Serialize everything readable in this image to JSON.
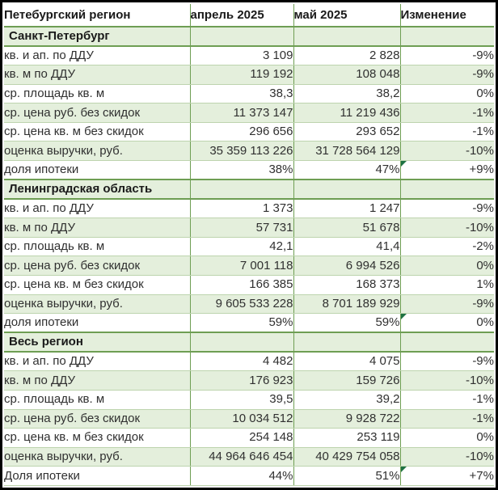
{
  "chart_data": {
    "type": "table",
    "title": "Петебургский регион",
    "columns": [
      "Петебургский регион",
      "апрель 2025",
      "май 2025",
      "Изменение"
    ],
    "sections": [
      {
        "title": "Санкт-Петербург",
        "rows": [
          {
            "label": "кв. и ап. по ДДУ",
            "april": "3 109",
            "may": "2 828",
            "change": "-9%",
            "flag": false
          },
          {
            "label": "кв. м по ДДУ",
            "april": "119 192",
            "may": "108 048",
            "change": "-9%",
            "flag": false
          },
          {
            "label": "ср. площадь кв. м",
            "april": "38,3",
            "may": "38,2",
            "change": "0%",
            "flag": false
          },
          {
            "label": "ср. цена руб. без скидок",
            "april": "11 373 147",
            "may": "11 219 436",
            "change": "-1%",
            "flag": false
          },
          {
            "label": "ср. цена кв. м без скидок",
            "april": "296 656",
            "may": "293 652",
            "change": "-1%",
            "flag": false
          },
          {
            "label": "оценка выручки, руб.",
            "april": "35 359 113 226",
            "may": "31 728 564 129",
            "change": "-10%",
            "flag": false
          },
          {
            "label": "доля ипотеки",
            "april": "38%",
            "may": "47%",
            "change": "+9%",
            "flag": true
          }
        ]
      },
      {
        "title": "Ленинградская область",
        "rows": [
          {
            "label": "кв. и ап. по ДДУ",
            "april": "1 373",
            "may": "1 247",
            "change": "-9%",
            "flag": false
          },
          {
            "label": "кв. м по ДДУ",
            "april": "57 731",
            "may": "51 678",
            "change": "-10%",
            "flag": false
          },
          {
            "label": "ср. площадь кв. м",
            "april": "42,1",
            "may": "41,4",
            "change": "-2%",
            "flag": false
          },
          {
            "label": "ср. цена руб. без скидок",
            "april": "7 001 118",
            "may": "6 994 526",
            "change": "0%",
            "flag": false
          },
          {
            "label": "ср. цена кв. м без скидок",
            "april": "166 385",
            "may": "168 373",
            "change": "1%",
            "flag": false
          },
          {
            "label": "оценка выручки, руб.",
            "april": "9 605 533 228",
            "may": "8 701 189 929",
            "change": "-9%",
            "flag": false
          },
          {
            "label": "доля ипотеки",
            "april": "59%",
            "may": "59%",
            "change": "0%",
            "flag": true
          }
        ]
      },
      {
        "title": "Весь регион",
        "rows": [
          {
            "label": "кв. и ап. по ДДУ",
            "april": "4 482",
            "may": "4 075",
            "change": "-9%",
            "flag": false
          },
          {
            "label": "кв. м по ДДУ",
            "april": "176 923",
            "may": "159 726",
            "change": "-10%",
            "flag": false
          },
          {
            "label": "ср. площадь кв. м",
            "april": "39,5",
            "may": "39,2",
            "change": "-1%",
            "flag": false
          },
          {
            "label": "ср. цена руб. без скидок",
            "april": "10 034 512",
            "may": "9 928 722",
            "change": "-1%",
            "flag": false
          },
          {
            "label": "ср. цена кв. м без скидок",
            "april": "254 148",
            "may": "253 119",
            "change": "0%",
            "flag": false
          },
          {
            "label": "оценка выручки, руб.",
            "april": "44 964 646 454",
            "may": "40 429 754 058",
            "change": "-10%",
            "flag": false
          },
          {
            "label": "Доля ипотеки",
            "april": "44%",
            "may": "51%",
            "change": "+7%",
            "flag": true
          }
        ]
      }
    ],
    "layout": {
      "banding": "alternating white / light-green data rows",
      "section_header_fill": "light-green",
      "value_alignment": "right",
      "note_indicator": "green triangle, top-left corner of change cell in mortgage-share rows"
    }
  },
  "colors": {
    "band_green": "#e4efdc",
    "border_strong": "#6e9e53",
    "border_light": "#bdd4ae",
    "flag_triangle": "#1e7243",
    "frame": "#010101",
    "text": "#303030"
  },
  "icons": {
    "flag": "note-indicator-triangle-icon"
  }
}
